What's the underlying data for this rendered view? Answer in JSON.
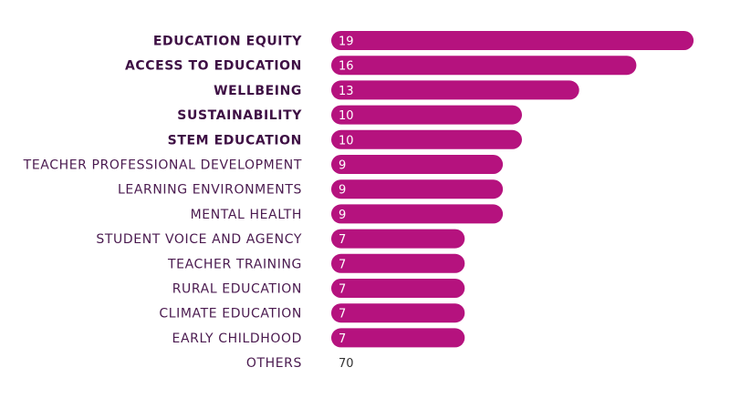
{
  "chart_data": {
    "type": "bar",
    "orientation": "horizontal",
    "title": "",
    "xlabel": "",
    "ylabel": "",
    "categories": [
      "EDUCATION EQUITY",
      "ACCESS TO EDUCATION",
      "WELLBEING",
      "SUSTAINABILITY",
      "STEM EDUCATION",
      "TEACHER PROFESSIONAL DEVELOPMENT",
      "LEARNING ENVIRONMENTS",
      "MENTAL HEALTH",
      "STUDENT VOICE AND AGENCY",
      "TEACHER TRAINING",
      "RURAL EDUCATION",
      "CLIMATE EDUCATION",
      "EARLY CHILDHOOD",
      "OTHERS"
    ],
    "values": [
      19,
      16,
      13,
      10,
      10,
      9,
      9,
      9,
      7,
      7,
      7,
      7,
      7,
      70
    ],
    "has_bar": [
      true,
      true,
      true,
      true,
      true,
      true,
      true,
      true,
      true,
      true,
      true,
      true,
      true,
      false
    ],
    "bold_labels": [
      true,
      true,
      true,
      true,
      true,
      false,
      false,
      false,
      false,
      false,
      false,
      false,
      false,
      false
    ],
    "bar_color": "#b5127e",
    "label_color": "#4a1a4f",
    "grid": false,
    "legend": "none"
  }
}
